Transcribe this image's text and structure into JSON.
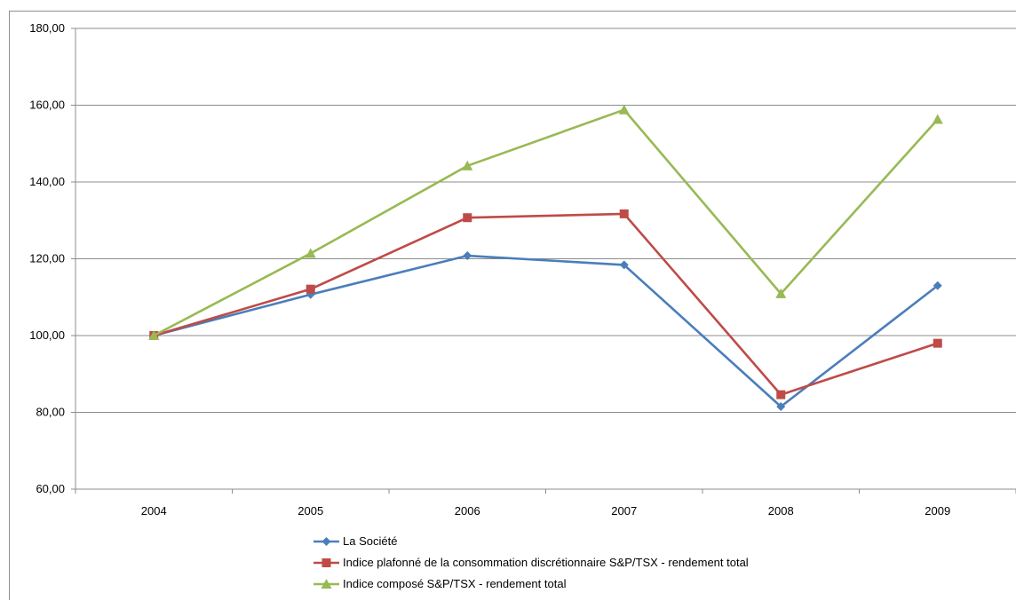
{
  "chart_data": {
    "type": "line",
    "categories": [
      "2004",
      "2005",
      "2006",
      "2007",
      "2008",
      "2009"
    ],
    "ylim": [
      60,
      180
    ],
    "yticks": [
      "60,00",
      "80,00",
      "100,00",
      "120,00",
      "140,00",
      "160,00",
      "180,00"
    ],
    "grid": true,
    "legend_position": "bottom-left",
    "series": [
      {
        "name": "La Société",
        "color": "#4a7ebb",
        "marker": "diamond",
        "values": [
          100.0,
          110.7,
          120.8,
          118.4,
          81.5,
          113.0
        ]
      },
      {
        "name": "Indice plafonné de la consommation discrétionnaire S&P/TSX - rendement total",
        "color": "#be4b48",
        "marker": "square",
        "values": [
          100.0,
          112.1,
          130.7,
          131.7,
          84.6,
          98.0
        ]
      },
      {
        "name": "Indice composé S&P/TSX - rendement total",
        "color": "#98b954",
        "marker": "triangle",
        "values": [
          100.0,
          121.4,
          144.2,
          158.8,
          110.9,
          156.3
        ]
      }
    ]
  }
}
